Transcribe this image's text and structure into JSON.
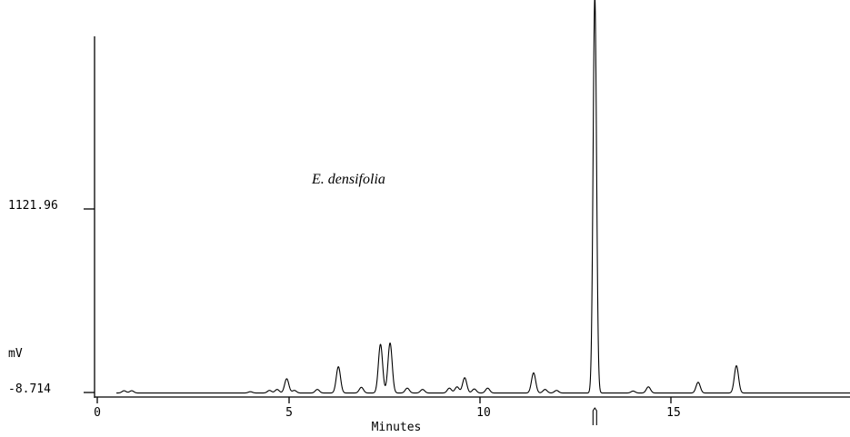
{
  "chart_data": {
    "type": "line",
    "title": "",
    "annotation": "E. densifolia",
    "xlabel": "Minutes",
    "ylabel": "mV",
    "x_ticks": [
      "0",
      "5",
      "10",
      "15"
    ],
    "x_tick_values": [
      0,
      5,
      10,
      15
    ],
    "y_ticks": [
      "1121.96",
      "-8.714"
    ],
    "y_tick_values": [
      1121.96,
      -8.714
    ],
    "xlim": [
      0,
      19.7
    ],
    "ylim": [
      -8.714,
      2440
    ],
    "grid": false,
    "baseline_mV": -12,
    "peaks": [
      {
        "rt": 0.7,
        "height_mV": 14
      },
      {
        "rt": 0.9,
        "height_mV": 14
      },
      {
        "rt": 4.0,
        "height_mV": 8
      },
      {
        "rt": 4.5,
        "height_mV": 16
      },
      {
        "rt": 4.7,
        "height_mV": 22
      },
      {
        "rt": 4.95,
        "height_mV": 88
      },
      {
        "rt": 5.15,
        "height_mV": 16
      },
      {
        "rt": 5.75,
        "height_mV": 22
      },
      {
        "rt": 6.3,
        "height_mV": 162
      },
      {
        "rt": 6.9,
        "height_mV": 35
      },
      {
        "rt": 7.4,
        "height_mV": 300
      },
      {
        "rt": 7.65,
        "height_mV": 308
      },
      {
        "rt": 8.1,
        "height_mV": 30
      },
      {
        "rt": 8.5,
        "height_mV": 22
      },
      {
        "rt": 9.2,
        "height_mV": 30
      },
      {
        "rt": 9.4,
        "height_mV": 38
      },
      {
        "rt": 9.6,
        "height_mV": 94
      },
      {
        "rt": 9.85,
        "height_mV": 25
      },
      {
        "rt": 10.2,
        "height_mV": 30
      },
      {
        "rt": 11.4,
        "height_mV": 124
      },
      {
        "rt": 11.7,
        "height_mV": 22
      },
      {
        "rt": 12.0,
        "height_mV": 16
      },
      {
        "rt": 13.0,
        "height_mV": 2440
      },
      {
        "rt": 14.0,
        "height_mV": 12
      },
      {
        "rt": 14.4,
        "height_mV": 38
      },
      {
        "rt": 15.7,
        "height_mV": 66
      },
      {
        "rt": 16.7,
        "height_mV": 168
      }
    ],
    "marker_rt": 13.0
  }
}
